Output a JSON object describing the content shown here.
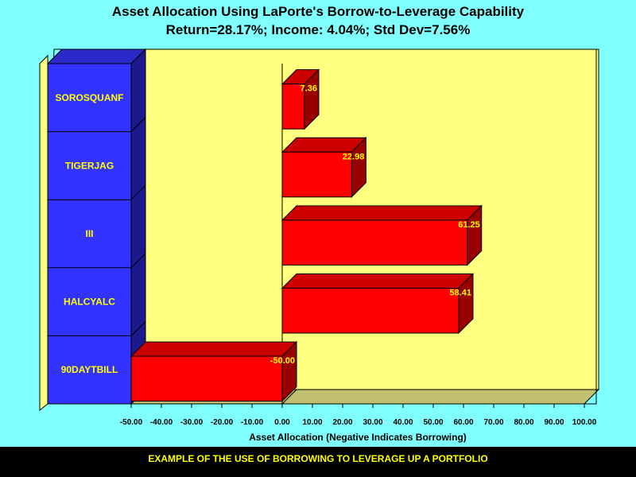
{
  "title": "Asset Allocation Using LaPorte's Borrow-to-Leverage Capability",
  "subtitle": "Return=28.17%; Income: 4.04%; Std Dev=7.56%",
  "footer": "EXAMPLE OF THE USE OF BORROWING TO LEVERAGE UP A PORTFOLIO",
  "colors": {
    "background": "#80ffff",
    "plot_area": "#ffff80",
    "bar": "#ff0000",
    "category_band": "#3333ff",
    "category_text": "#ffff00",
    "value_label": "#ffff00",
    "footer_bg": "#000000",
    "footer_text": "#ffff00"
  },
  "chart_data": {
    "type": "bar",
    "orientation": "horizontal",
    "title": "Asset Allocation Using LaPorte's Borrow-to-Leverage Capability",
    "subtitle": "Return=28.17%; Income: 4.04%; Std Dev=7.56%",
    "categories": [
      "SOROSQUANF",
      "TIGERJAG",
      "III",
      "HALCYALC",
      "90DAYTBILL"
    ],
    "values": [
      7.36,
      22.98,
      61.25,
      58.41,
      -50.0
    ],
    "value_labels": [
      "7.36",
      "22.98",
      "61.25",
      "58.41",
      "-50.00"
    ],
    "xlabel": "Asset Allocation (Negative Indicates Borrowing)",
    "xlim": [
      -50,
      100
    ],
    "xticks": [
      -50,
      -40,
      -30,
      -20,
      -10,
      0,
      10,
      20,
      30,
      40,
      50,
      60,
      70,
      80,
      90,
      100
    ],
    "xtick_labels": [
      "-50.00",
      "-40.00",
      "-30.00",
      "-20.00",
      "-10.00",
      "0.00",
      "10.00",
      "20.00",
      "30.00",
      "40.00",
      "50.00",
      "60.00",
      "70.00",
      "80.00",
      "90.00",
      "100.00"
    ],
    "grid": false,
    "style": "3d"
  }
}
